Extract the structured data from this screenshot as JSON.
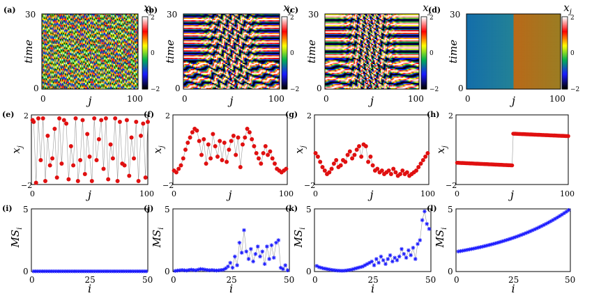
{
  "figure": {
    "background": "#ffffff",
    "colormap": [
      "#000000",
      "#1a1aff",
      "#00b050",
      "#ffff00",
      "#ff0000",
      "#ffffff"
    ]
  },
  "chart_data": [
    {
      "type": "heatmap",
      "panel": "(a)",
      "xlabel": "j",
      "ylabel": "time",
      "xlim": [
        0,
        100
      ],
      "ylim": [
        0,
        30
      ],
      "xticks": [
        "0",
        "100"
      ],
      "yticks": [
        "0",
        "30"
      ],
      "colorbar": {
        "label": "x_j",
        "range": [
          -2,
          2
        ],
        "ticks": [
          "2",
          "0",
          "−2"
        ]
      },
      "pattern": "disordered zig-zag stripes"
    },
    {
      "type": "heatmap",
      "panel": "(b)",
      "xlabel": "j",
      "ylabel": "time",
      "xlim": [
        0,
        100
      ],
      "ylim": [
        0,
        30
      ],
      "xticks": [
        "0",
        "100"
      ],
      "yticks": [
        "0",
        "30"
      ],
      "colorbar": {
        "label": "x_j",
        "range": [
          -2,
          2
        ],
        "ticks": [
          "2",
          "0",
          "−2"
        ]
      },
      "pattern": "horizontal bands with central irregular region"
    },
    {
      "type": "heatmap",
      "panel": "(c)",
      "xlabel": "j",
      "ylabel": "time",
      "xlim": [
        0,
        100
      ],
      "ylim": [
        0,
        30
      ],
      "xticks": [
        "0",
        "100"
      ],
      "yticks": [
        "0",
        "30"
      ],
      "colorbar": {
        "label": "x_j",
        "range": [
          -2,
          2
        ],
        "ticks": [
          "2",
          "0",
          "−2"
        ]
      },
      "pattern": "horizontal bands with central irregular region"
    },
    {
      "type": "heatmap",
      "panel": "(d)",
      "xlabel": "j",
      "ylabel": "time",
      "xlim": [
        0,
        100
      ],
      "ylim": [
        0,
        30
      ],
      "xticks": [
        "0",
        "100"
      ],
      "yticks": [
        "0",
        "30"
      ],
      "colorbar": {
        "label": "x_j",
        "range": [
          -2,
          2
        ],
        "ticks": [
          "2",
          "0",
          "−2"
        ]
      },
      "left_value": -0.8,
      "right_value": 0.8,
      "split_at": 50
    },
    {
      "type": "scatter",
      "panel": "(e)",
      "xlabel": "j",
      "ylabel": "x_j",
      "xlim": [
        0,
        100
      ],
      "ylim": [
        -2,
        2
      ],
      "xticks": [
        "0",
        "100"
      ],
      "yticks": [
        "2",
        "0",
        "−2"
      ],
      "color": "#e01010",
      "marker": "circle",
      "x": [
        1,
        2,
        4,
        6,
        8,
        10,
        12,
        14,
        16,
        18,
        20,
        22,
        24,
        26,
        28,
        30,
        32,
        34,
        36,
        38,
        40,
        42,
        44,
        46,
        48,
        50,
        52,
        54,
        56,
        58,
        60,
        62,
        64,
        66,
        68,
        70,
        72,
        74,
        76,
        78,
        80,
        82,
        84,
        86,
        88,
        90,
        92,
        94,
        96,
        98,
        100
      ],
      "y": [
        1.7,
        1.6,
        -1.9,
        1.8,
        -0.6,
        1.8,
        -1.8,
        0.8,
        -0.9,
        -0.5,
        1.2,
        -1.6,
        1.8,
        -0.8,
        1.7,
        1.5,
        -1.7,
        0.2,
        -0.9,
        1.8,
        -1.8,
        -0.6,
        1.7,
        -1.4,
        0.9,
        -0.4,
        -1.8,
        1.8,
        -0.6,
        0.6,
        1.7,
        -1.1,
        1.8,
        -1.7,
        0.3,
        -0.5,
        1.8,
        -1.8,
        1.6,
        -0.8,
        -0.9,
        1.7,
        -1.5,
        0.7,
        -0.5,
        1.6,
        -1.8,
        0.8,
        1.5,
        -1.6,
        1.6
      ]
    },
    {
      "type": "scatter",
      "panel": "(f)",
      "xlabel": "j",
      "ylabel": "x_j",
      "xlim": [
        0,
        100
      ],
      "ylim": [
        -2,
        2
      ],
      "xticks": [
        "0",
        "100"
      ],
      "yticks": [
        "2",
        "0",
        "−2"
      ],
      "color": "#e01010",
      "marker": "circle",
      "x": [
        1,
        3,
        5,
        7,
        9,
        11,
        13,
        15,
        17,
        19,
        21,
        23,
        25,
        27,
        29,
        31,
        33,
        35,
        37,
        39,
        41,
        43,
        45,
        47,
        49,
        51,
        53,
        55,
        57,
        59,
        61,
        63,
        65,
        67,
        69,
        71,
        73,
        75,
        77,
        79,
        81,
        83,
        85,
        87,
        89,
        91,
        93,
        95,
        97,
        99
      ],
      "y": [
        -1.2,
        -1.3,
        -1.1,
        -0.9,
        -0.5,
        0.0,
        0.4,
        0.7,
        1.0,
        1.2,
        1.1,
        0.5,
        -0.3,
        0.6,
        -0.8,
        0.3,
        -0.5,
        0.9,
        0.2,
        -0.4,
        0.5,
        -0.6,
        0.4,
        -0.7,
        0.0,
        0.5,
        0.8,
        -0.3,
        0.7,
        -1.0,
        0.3,
        0.7,
        1.2,
        1.0,
        0.6,
        0.2,
        -0.2,
        -0.5,
        -0.8,
        -0.2,
        0.2,
        -0.3,
        -0.1,
        -0.5,
        -0.8,
        -1.1,
        -1.2,
        -1.3,
        -1.2,
        -1.1
      ]
    },
    {
      "type": "scatter",
      "panel": "(g)",
      "xlabel": "j",
      "ylabel": "x_j",
      "xlim": [
        0,
        100
      ],
      "ylim": [
        -2,
        2
      ],
      "xticks": [
        "0",
        "100"
      ],
      "yticks": [
        "2",
        "0",
        "−2"
      ],
      "color": "#e01010",
      "marker": "circle",
      "x": [
        1,
        3,
        5,
        7,
        9,
        11,
        13,
        15,
        17,
        19,
        21,
        23,
        25,
        27,
        29,
        31,
        33,
        35,
        37,
        39,
        41,
        43,
        45,
        47,
        49,
        51,
        53,
        55,
        57,
        59,
        61,
        63,
        65,
        67,
        69,
        71,
        73,
        75,
        77,
        79,
        81,
        83,
        85,
        87,
        89,
        91,
        93,
        95,
        97,
        99
      ],
      "y": [
        -0.2,
        -0.4,
        -0.7,
        -1.0,
        -1.2,
        -1.4,
        -1.3,
        -1.1,
        -0.8,
        -0.6,
        -1.0,
        -0.9,
        -0.6,
        -0.7,
        -0.3,
        -0.1,
        -0.5,
        -0.3,
        0.0,
        0.2,
        -0.4,
        0.3,
        0.2,
        -0.7,
        -0.4,
        -0.9,
        -1.2,
        -1.1,
        -1.3,
        -1.2,
        -1.4,
        -1.3,
        -1.2,
        -1.4,
        -1.1,
        -1.3,
        -1.5,
        -1.4,
        -1.2,
        -1.4,
        -1.3,
        -1.5,
        -1.4,
        -1.3,
        -1.2,
        -1.0,
        -0.8,
        -0.6,
        -0.4,
        -0.2
      ]
    },
    {
      "type": "scatter",
      "panel": "(h)",
      "xlabel": "j",
      "ylabel": "x_j",
      "xlim": [
        0,
        100
      ],
      "ylim": [
        -2,
        2
      ],
      "xticks": [
        "0",
        "100"
      ],
      "yticks": [
        "2",
        "0",
        "−2"
      ],
      "color": "#e01010",
      "marker": "circle",
      "segments": [
        {
          "x0": 1,
          "x1": 50,
          "y0": -0.75,
          "y1": -0.9
        },
        {
          "x0": 51,
          "x1": 100,
          "y0": 0.92,
          "y1": 0.78
        }
      ]
    },
    {
      "type": "line",
      "panel": "(i)",
      "xlabel": "i",
      "ylabel": "MS_i",
      "xlim": [
        0,
        50
      ],
      "ylim": [
        0,
        5
      ],
      "xticks": [
        "0",
        "25",
        "50"
      ],
      "yticks": [
        "5",
        "0"
      ],
      "color": "#1a1aff",
      "marker": "star",
      "y": [
        0.02,
        0.02,
        0.02,
        0.02,
        0.02,
        0.02,
        0.02,
        0.02,
        0.02,
        0.02,
        0.02,
        0.02,
        0.02,
        0.02,
        0.02,
        0.02,
        0.02,
        0.02,
        0.02,
        0.02,
        0.02,
        0.02,
        0.02,
        0.02,
        0.02,
        0.02,
        0.02,
        0.02,
        0.02,
        0.02,
        0.02,
        0.02,
        0.02,
        0.02,
        0.02,
        0.02,
        0.02,
        0.02,
        0.02,
        0.02,
        0.02,
        0.02,
        0.02,
        0.02,
        0.02,
        0.02,
        0.02,
        0.02,
        0.02,
        0.02
      ]
    },
    {
      "type": "line",
      "panel": "(j)",
      "xlabel": "i",
      "ylabel": "MS_i",
      "xlim": [
        0,
        50
      ],
      "ylim": [
        0,
        5
      ],
      "xticks": [
        "0",
        "25",
        "50"
      ],
      "yticks": [
        "5",
        "0"
      ],
      "color": "#1a1aff",
      "marker": "star",
      "y": [
        0.05,
        0.08,
        0.1,
        0.12,
        0.1,
        0.08,
        0.12,
        0.15,
        0.12,
        0.1,
        0.15,
        0.2,
        0.18,
        0.15,
        0.12,
        0.1,
        0.12,
        0.1,
        0.08,
        0.1,
        0.12,
        0.15,
        0.25,
        0.4,
        0.7,
        0.3,
        1.2,
        0.5,
        2.3,
        1.5,
        3.3,
        1.6,
        1.0,
        1.8,
        0.8,
        1.4,
        2.0,
        1.2,
        1.6,
        0.6,
        2.0,
        1.0,
        2.1,
        1.1,
        2.3,
        2.5,
        0.3,
        0.2,
        0.5,
        0.1
      ]
    },
    {
      "type": "line",
      "panel": "(k)",
      "xlabel": "i",
      "ylabel": "MS_i",
      "xlim": [
        0,
        50
      ],
      "ylim": [
        0,
        5
      ],
      "xticks": [
        "0",
        "25",
        "50"
      ],
      "yticks": [
        "5",
        "0"
      ],
      "color": "#1a1aff",
      "marker": "star",
      "y": [
        0.45,
        0.35,
        0.3,
        0.25,
        0.22,
        0.18,
        0.15,
        0.12,
        0.1,
        0.08,
        0.07,
        0.06,
        0.07,
        0.09,
        0.12,
        0.15,
        0.2,
        0.25,
        0.3,
        0.35,
        0.4,
        0.5,
        0.6,
        0.7,
        0.8,
        0.5,
        1.0,
        0.7,
        1.2,
        0.9,
        0.6,
        1.0,
        1.3,
        0.8,
        1.1,
        0.9,
        1.2,
        1.8,
        1.4,
        1.1,
        1.7,
        1.3,
        1.9,
        1.0,
        2.2,
        2.5,
        4.1,
        4.8,
        3.8,
        3.4
      ]
    },
    {
      "type": "line",
      "panel": "(l)",
      "xlabel": "i",
      "ylabel": "MS_i",
      "xlim": [
        0,
        50
      ],
      "ylim": [
        0,
        5
      ],
      "xticks": [
        "0",
        "25",
        "50"
      ],
      "yticks": [
        "5",
        "0"
      ],
      "color": "#1a1aff",
      "marker": "star",
      "start_value": 1.6,
      "end_value": 4.9,
      "curve": "exponential"
    }
  ]
}
